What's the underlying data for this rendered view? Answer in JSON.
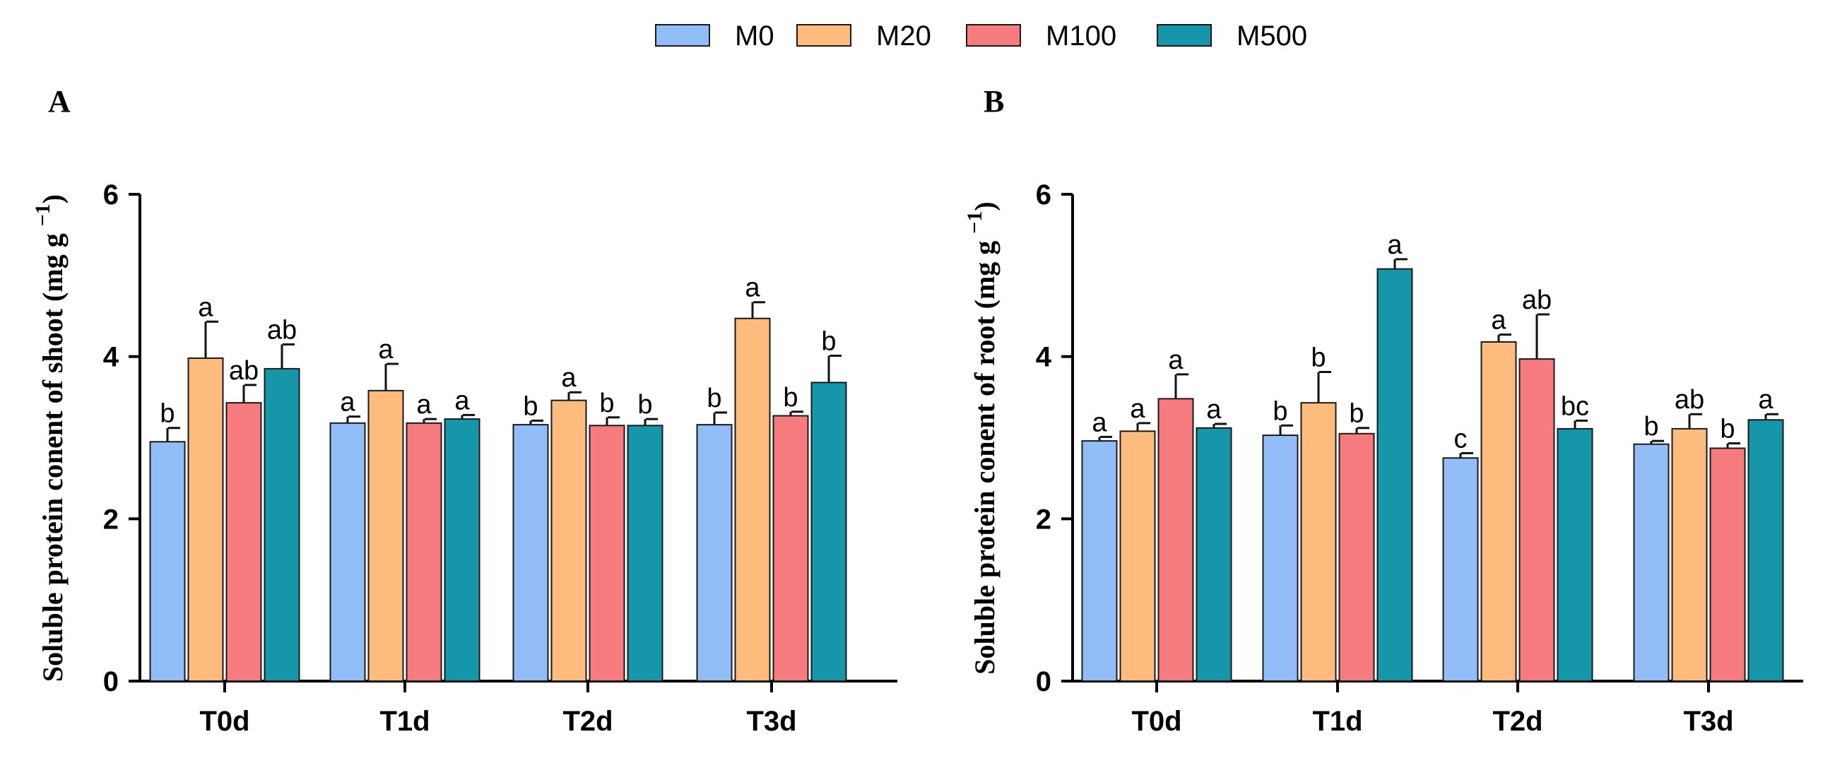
{
  "chart_data": [
    {
      "type": "bar",
      "panel": "A",
      "ylabel": "Soluble protein conent of shoot (mg g",
      "ylabel_sup": "−1",
      "ylabel_close": ")",
      "ylim": [
        0,
        6
      ],
      "yticks": [
        "0",
        "2",
        "4",
        "6"
      ],
      "categories": [
        "T0d",
        "T1d",
        "T2d",
        "T3d"
      ],
      "series": [
        {
          "name": "M0",
          "values": [
            2.95,
            3.18,
            3.16,
            3.16
          ],
          "errors": [
            0.17,
            0.08,
            0.05,
            0.15
          ],
          "labels": [
            "b",
            "a",
            "b",
            "b"
          ]
        },
        {
          "name": "M20",
          "values": [
            3.98,
            3.58,
            3.46,
            4.47
          ],
          "errors": [
            0.45,
            0.33,
            0.1,
            0.2
          ],
          "labels": [
            "a",
            "a",
            "a",
            "a"
          ]
        },
        {
          "name": "M100",
          "values": [
            3.43,
            3.18,
            3.15,
            3.27
          ],
          "errors": [
            0.22,
            0.05,
            0.1,
            0.05
          ],
          "labels": [
            "ab",
            "a",
            "b",
            "b"
          ]
        },
        {
          "name": "M500",
          "values": [
            3.85,
            3.23,
            3.15,
            3.68
          ],
          "errors": [
            0.3,
            0.05,
            0.08,
            0.33
          ],
          "labels": [
            "ab",
            "a",
            "b",
            "b"
          ]
        }
      ]
    },
    {
      "type": "bar",
      "panel": "B",
      "ylabel": "Soluble protein conent of root (mg g",
      "ylabel_sup": "−1",
      "ylabel_close": ")",
      "ylim": [
        0,
        6
      ],
      "yticks": [
        "0",
        "2",
        "4",
        "6"
      ],
      "categories": [
        "T0d",
        "T1d",
        "T2d",
        "T3d"
      ],
      "series": [
        {
          "name": "M0",
          "values": [
            2.96,
            3.03,
            2.75,
            2.92
          ],
          "errors": [
            0.05,
            0.12,
            0.06,
            0.04
          ],
          "labels": [
            "a",
            "b",
            "c",
            "b"
          ]
        },
        {
          "name": "M20",
          "values": [
            3.08,
            3.43,
            4.18,
            3.11
          ],
          "errors": [
            0.1,
            0.38,
            0.09,
            0.18
          ],
          "labels": [
            "a",
            "b",
            "a",
            "ab"
          ]
        },
        {
          "name": "M100",
          "values": [
            3.48,
            3.05,
            3.97,
            2.87
          ],
          "errors": [
            0.3,
            0.07,
            0.55,
            0.06
          ],
          "labels": [
            "a",
            "b",
            "ab",
            "b"
          ]
        },
        {
          "name": "M500",
          "values": [
            3.12,
            5.08,
            3.11,
            3.22
          ],
          "errors": [
            0.05,
            0.12,
            0.1,
            0.07
          ],
          "labels": [
            "a",
            "a",
            "bc",
            "a"
          ]
        }
      ]
    }
  ],
  "legend": [
    {
      "name": "M0",
      "color": "#92bdf7"
    },
    {
      "name": "M20",
      "color": "#fdbb7d"
    },
    {
      "name": "M100",
      "color": "#f57b7e"
    },
    {
      "name": "M500",
      "color": "#1696a9"
    }
  ]
}
